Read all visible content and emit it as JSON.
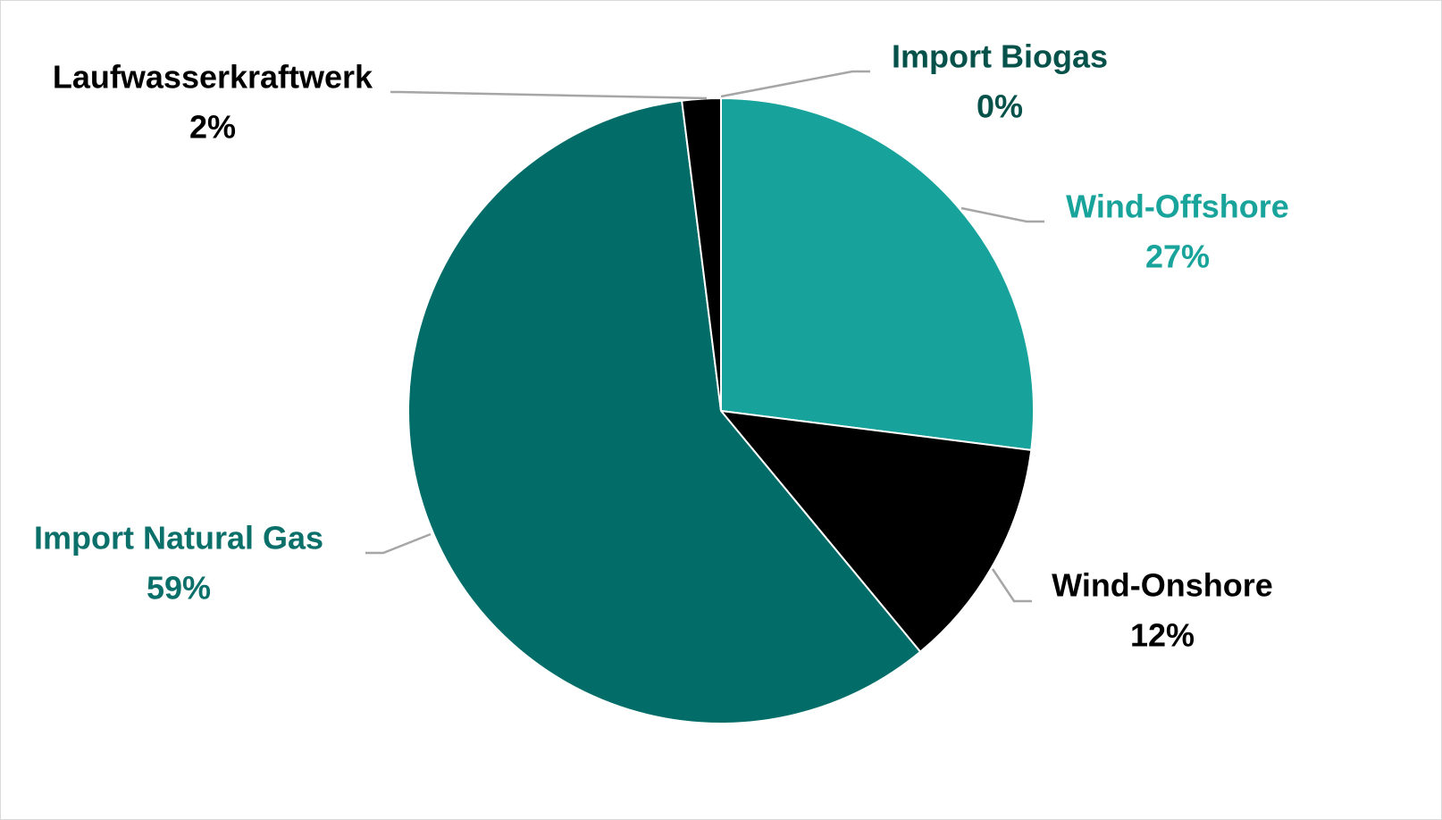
{
  "chart_data": {
    "type": "pie",
    "title": "",
    "slices": [
      {
        "name": "Import Biogas",
        "value": 0,
        "label": "0%",
        "color": "#1aa69c",
        "label_color": "#06524b"
      },
      {
        "name": "Wind-Offshore",
        "value": 27,
        "label": "27%",
        "color": "#17a39b",
        "label_color": "#18a39b"
      },
      {
        "name": "Wind-Onshore",
        "value": 12,
        "label": "12%",
        "color": "#000000",
        "label_color": "#000000"
      },
      {
        "name": "Import Natural Gas",
        "value": 59,
        "label": "59%",
        "color": "#026d68",
        "label_color": "#0b6f6a"
      },
      {
        "name": "Laufwasserkraftwerk",
        "value": 2,
        "label": "2%",
        "color": "#000000",
        "label_color": "#000000"
      }
    ],
    "start_angle_deg": 0,
    "direction": "clockwise",
    "legend": "none",
    "leader_line_color": "#a6a6a6"
  }
}
